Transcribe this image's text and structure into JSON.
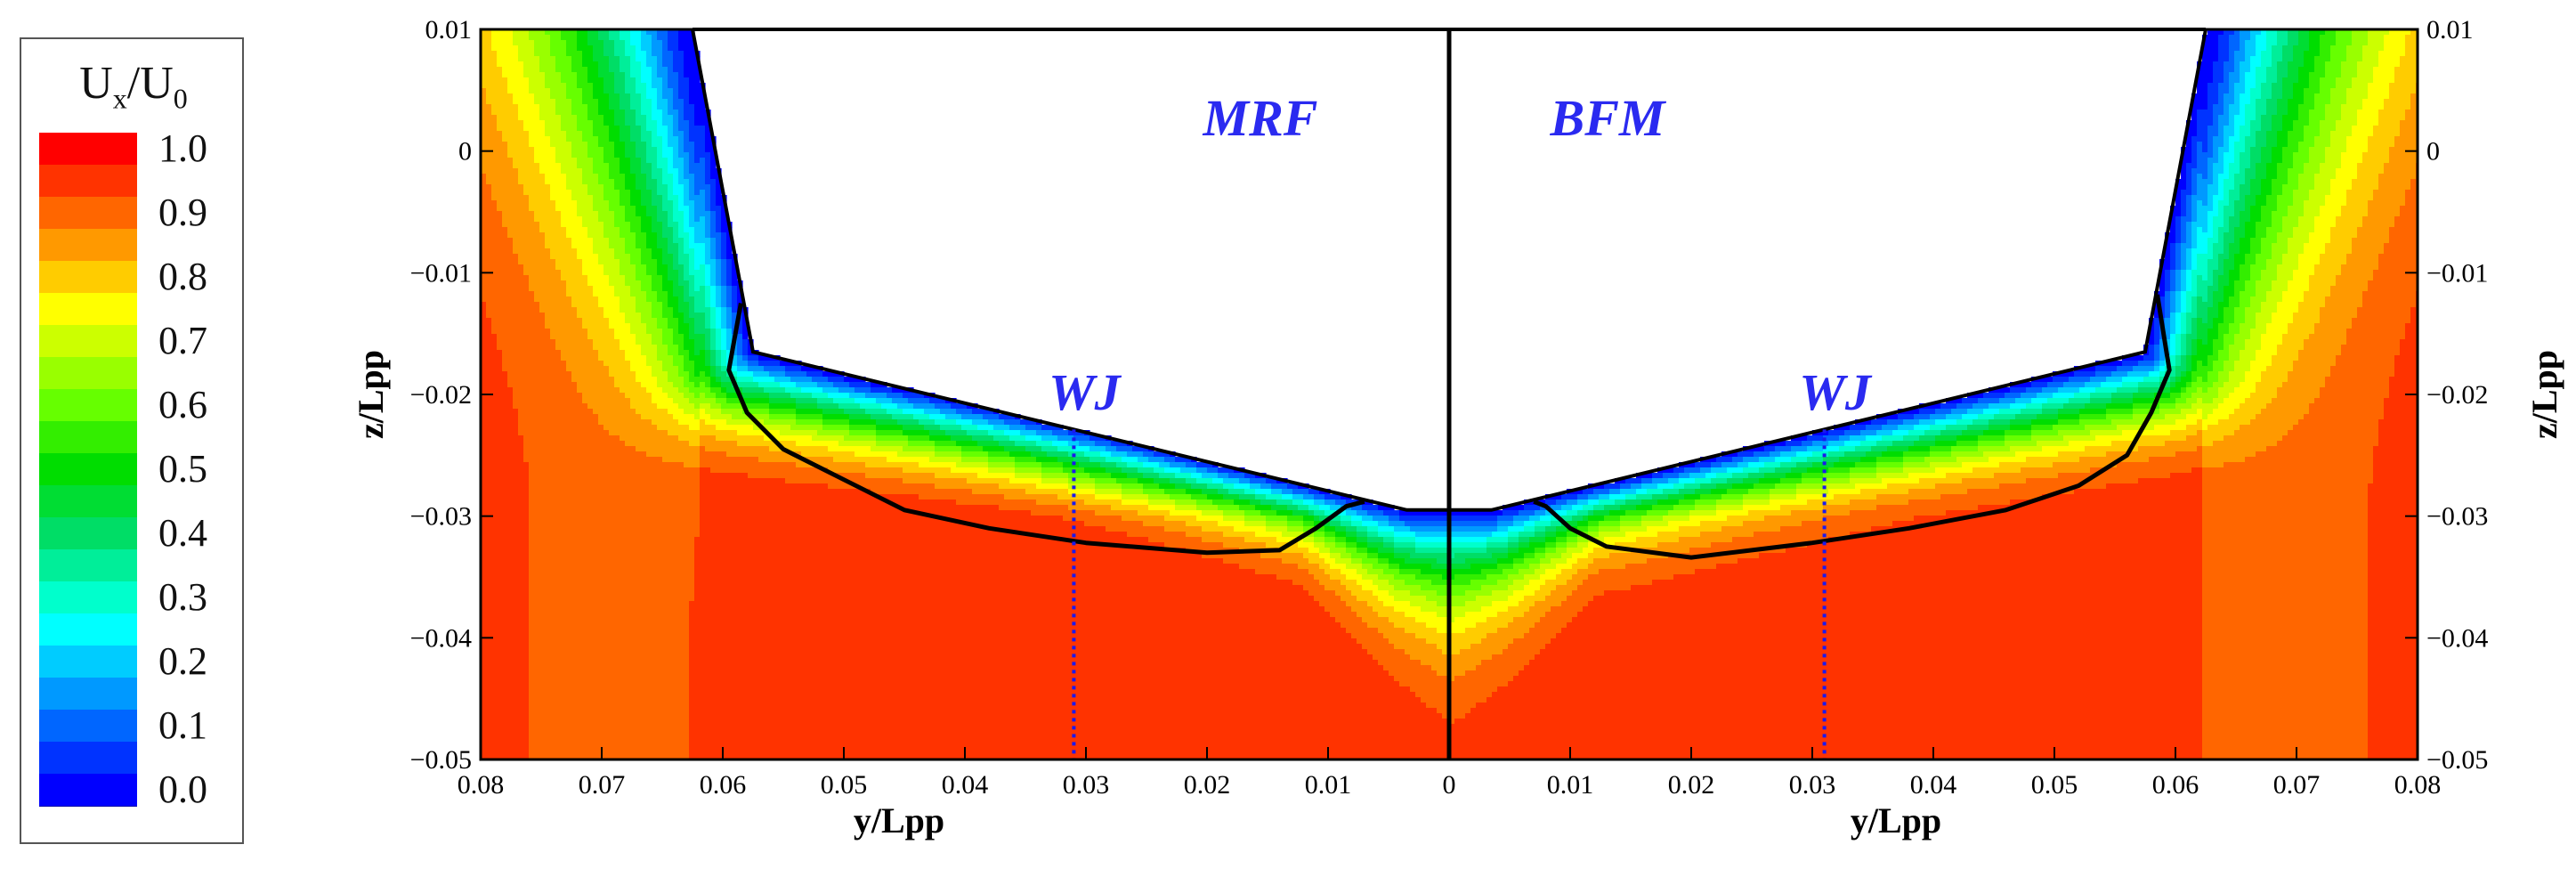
{
  "chart_data": {
    "type": "contour",
    "title": "",
    "xlabel": "y/Lpp",
    "ylabel": "z/Lpp",
    "left_panel": {
      "method_label": "MRF",
      "jet_label": "WJ",
      "xlim": [
        0.08,
        0
      ],
      "x_ticks": [
        "0.08",
        "0.07",
        "0.06",
        "0.05",
        "0.04",
        "0.03",
        "0.02",
        "0.01",
        "0"
      ],
      "waterjet_y": 0.031
    },
    "right_panel": {
      "method_label": "BFM",
      "jet_label": "WJ",
      "xlim": [
        0,
        0.08
      ],
      "x_ticks": [
        "0.01",
        "0.02",
        "0.03",
        "0.04",
        "0.05",
        "0.06",
        "0.07",
        "0.08"
      ],
      "waterjet_y": 0.031
    },
    "zero_label": "0",
    "ylim": [
      -0.05,
      0.01
    ],
    "y_ticks": [
      "0.01",
      "0",
      "−0.01",
      "−0.02",
      "−0.03",
      "−0.04",
      "−0.05"
    ],
    "y_tick_values": [
      0.01,
      0,
      -0.01,
      -0.02,
      -0.03,
      -0.04,
      -0.05
    ],
    "colorbar": {
      "title_main": "U",
      "title_sub1": "x",
      "title_mid": "/U",
      "title_sub2": "0",
      "min": 0.0,
      "max": 1.0,
      "step": 0.05,
      "labels": [
        "1.0",
        "0.9",
        "0.8",
        "0.7",
        "0.6",
        "0.5",
        "0.4",
        "0.3",
        "0.2",
        "0.1",
        "0.0"
      ],
      "colors": [
        "#ff0000",
        "#ff3300",
        "#ff6600",
        "#ff9900",
        "#ffcc00",
        "#ffff00",
        "#ccff00",
        "#99ff00",
        "#66ff00",
        "#33ee00",
        "#00dd00",
        "#00dd33",
        "#00dd66",
        "#00ee99",
        "#00ffcc",
        "#00ffff",
        "#00ccff",
        "#0099ff",
        "#0066ff",
        "#0033ff",
        "#0000ff"
      ]
    },
    "hull_section_z": [
      0.01,
      0.01,
      -0.0165,
      -0.0295,
      -0.0295
    ],
    "hull_section_y": [
      0.0625,
      0.0625,
      0.0575,
      0.0035,
      0.0
    ]
  }
}
